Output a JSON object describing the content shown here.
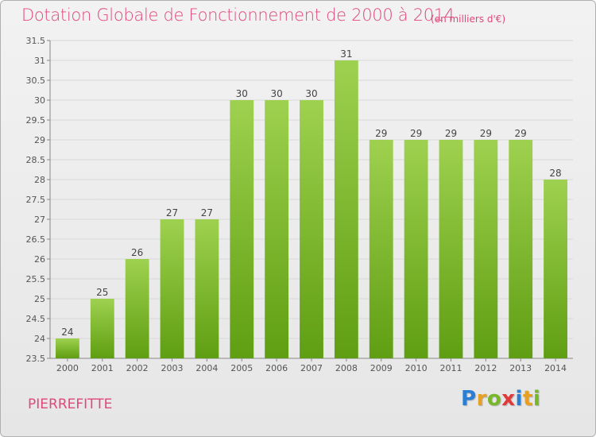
{
  "chart_data": {
    "type": "bar",
    "title": "Dotation Globale de Fonctionnement de 2000 à 2014",
    "subtitle": "(en milliers d'€)",
    "categories": [
      "2000",
      "2001",
      "2002",
      "2003",
      "2004",
      "2005",
      "2006",
      "2007",
      "2008",
      "2009",
      "2010",
      "2011",
      "2012",
      "2013",
      "2014"
    ],
    "values": [
      24,
      25,
      26,
      27,
      27,
      30,
      30,
      30,
      31,
      29,
      29,
      29,
      29,
      29,
      28
    ],
    "data_labels": [
      "24",
      "25",
      "26",
      "27",
      "27",
      "30",
      "30",
      "30",
      "31",
      "29",
      "29",
      "29",
      "29",
      "29",
      "28"
    ],
    "ylim": [
      23.5,
      31.5
    ],
    "yticks": [
      23.5,
      24,
      24.5,
      25,
      25.5,
      26,
      26.5,
      27,
      27.5,
      28,
      28.5,
      29,
      29.5,
      30,
      30.5,
      31,
      31.5
    ],
    "ytick_labels": [
      "23.5",
      "24",
      "24.5",
      "25",
      "25.5",
      "26",
      "26.5",
      "27",
      "27.5",
      "28",
      "28.5",
      "29",
      "29.5",
      "30",
      "30.5",
      "31",
      "31.5"
    ],
    "grid": true,
    "xlabel": "",
    "ylabel": "",
    "colors": {
      "bar_top": "#9ed14f",
      "bar_bottom": "#5f9e12",
      "accent": "#e0477a",
      "grid": "#d8d8d8"
    }
  },
  "footer": {
    "commune": "PIERREFITTE",
    "logo_letters": [
      {
        "ch": "P",
        "color": "#2a7fd4"
      },
      {
        "ch": "r",
        "color": "#e8a020"
      },
      {
        "ch": "o",
        "color": "#77b82a"
      },
      {
        "ch": "x",
        "color": "#e03a3a"
      },
      {
        "ch": "i",
        "color": "#2a7fd4"
      },
      {
        "ch": "t",
        "color": "#e8a020"
      },
      {
        "ch": "i",
        "color": "#77b82a"
      }
    ]
  }
}
